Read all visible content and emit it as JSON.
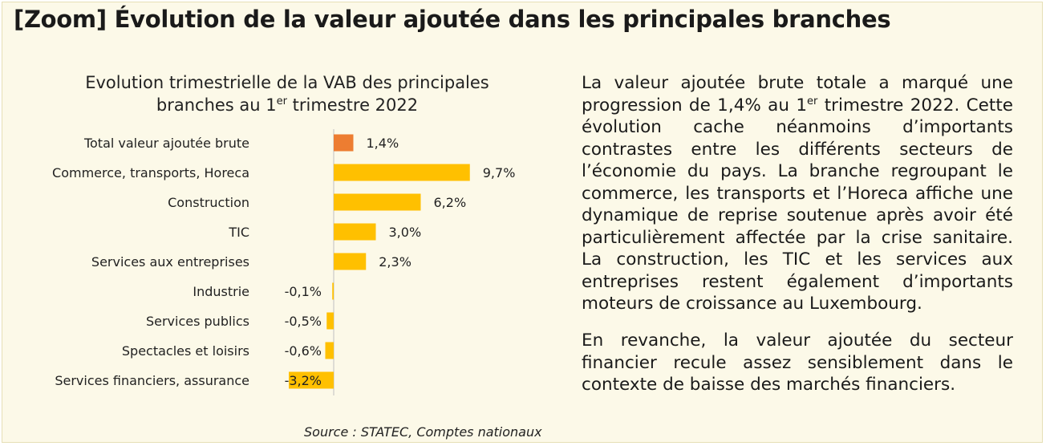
{
  "header": {
    "title": "[Zoom] Évolution de la valeur ajoutée dans les principales branches"
  },
  "chart_data": {
    "type": "bar",
    "orientation": "horizontal",
    "title_parts": [
      "Evolution trimestrielle de la VAB des principales branches au 1",
      "er",
      " trimestre 2022"
    ],
    "categories": [
      "Total valeur ajoutée brute",
      "Commerce, transports, Horeca",
      "Construction",
      "TIC",
      "Services aux entreprises",
      "Industrie",
      "Services publics",
      "Spectacles et loisirs",
      "Services financiers, assurance"
    ],
    "values": [
      1.4,
      9.7,
      6.2,
      3.0,
      2.3,
      -0.1,
      -0.5,
      -0.6,
      -3.2
    ],
    "data_labels": [
      "1,4%",
      "9,7%",
      "6,2%",
      "3,0%",
      "2,3%",
      "-0,1%",
      "-0,5%",
      "-0,6%",
      "-3,2%"
    ],
    "colors": [
      "#ed7d31",
      "#ffc000",
      "#ffc000",
      "#ffc000",
      "#ffc000",
      "#ffc000",
      "#ffc000",
      "#ffc000",
      "#ffc000"
    ],
    "axis_color": "#bfbfbf",
    "xlim": [
      -3.2,
      9.7
    ],
    "source": "Source : STATEC, Comptes nationaux"
  },
  "text": {
    "para1_parts": [
      "La valeur ajoutée brute totale a marqué une progression de 1,4% au 1",
      "er",
      " trimestre 2022. Cette évolution cache néanmoins d’importants contrastes entre les différents secteurs de l’économie du pays. La branche regroupant le commerce, les transports et l’Horeca affiche une dynamique de reprise soutenue après avoir été particulièrement affectée par la crise sanitaire. La construction, les TIC et les services aux entreprises restent également d’importants moteurs de croissance au Luxembourg."
    ],
    "para2": "En revanche, la valeur ajoutée du secteur financier recule assez sensiblement dans le contexte de baisse des marchés financiers."
  }
}
